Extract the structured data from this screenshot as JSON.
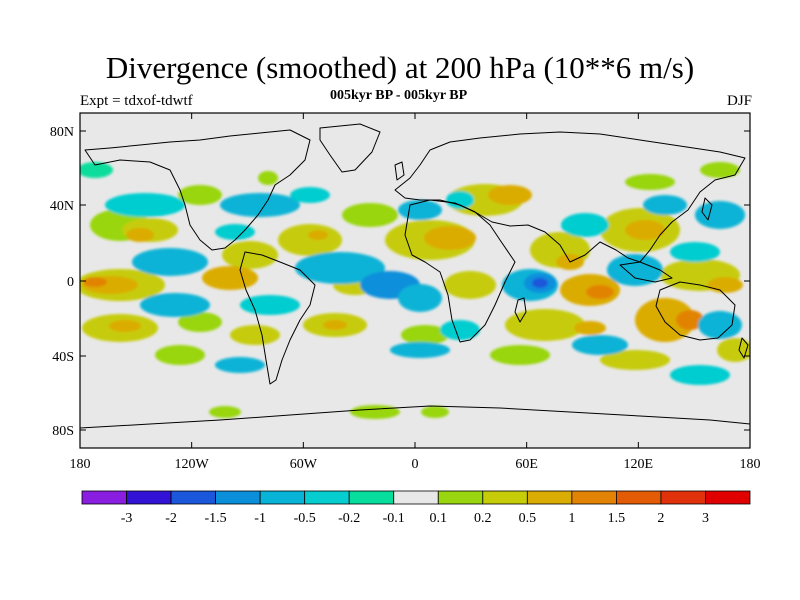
{
  "header": {
    "title": "Divergence (smoothed) at 200 hPa (10**6 m/s)",
    "subtitle": "005kyr BP - 005kyr BP",
    "expt": "Expt = tdxof-tdwtf",
    "season": "DJF"
  },
  "axes": {
    "lat_ticks": [
      "80N",
      "40N",
      "0",
      "40S",
      "80S"
    ],
    "lon_ticks": [
      "180",
      "120W",
      "60W",
      "0",
      "60E",
      "120E",
      "180"
    ]
  },
  "colorbar": {
    "labels": [
      "-3",
      "-2",
      "-1.5",
      "-1",
      "-0.5",
      "-0.2",
      "-0.1",
      "0.1",
      "0.2",
      "0.5",
      "1",
      "1.5",
      "2",
      "3"
    ],
    "colors": [
      "#8a1ee0",
      "#3213d6",
      "#1a57db",
      "#0b8fdb",
      "#07b3d6",
      "#06cdd0",
      "#07dd9c",
      "#e8e8e8",
      "#99d610",
      "#c6cc08",
      "#dbac04",
      "#e28306",
      "#e35c05",
      "#e1310a",
      "#e10000"
    ]
  }
}
